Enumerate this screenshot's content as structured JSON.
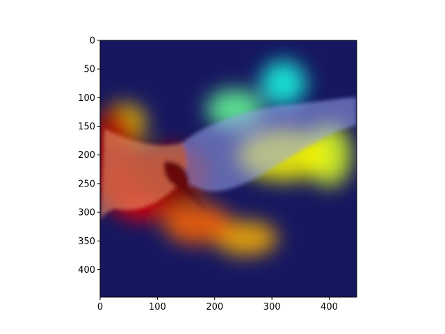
{
  "chart_data": {
    "type": "heatmap",
    "description_of_content": "",
    "title": "",
    "xlabel": "",
    "ylabel": "",
    "xlim": [
      0,
      448
    ],
    "ylim": [
      448,
      0
    ],
    "x_ticks": [
      0,
      100,
      200,
      300,
      400
    ],
    "y_ticks": [
      0,
      50,
      100,
      150,
      200,
      250,
      300,
      350,
      400
    ],
    "grid": false,
    "legend": "none",
    "colormap": "jet",
    "heat_regions": [
      {
        "x": 120,
        "y": 235,
        "rx": 70,
        "ry": 55,
        "level": 1.0
      },
      {
        "x": 25,
        "y": 205,
        "rx": 45,
        "ry": 90,
        "level": 0.95
      },
      {
        "x": 75,
        "y": 260,
        "rx": 65,
        "ry": 55,
        "level": 0.85
      },
      {
        "x": 170,
        "y": 320,
        "rx": 60,
        "ry": 35,
        "level": 0.7
      },
      {
        "x": 255,
        "y": 345,
        "rx": 55,
        "ry": 30,
        "level": 0.6
      },
      {
        "x": 40,
        "y": 145,
        "rx": 40,
        "ry": 35,
        "level": 0.55
      },
      {
        "x": 320,
        "y": 200,
        "rx": 80,
        "ry": 45,
        "level": 0.5
      },
      {
        "x": 400,
        "y": 200,
        "rx": 40,
        "ry": 55,
        "level": 0.45
      },
      {
        "x": 235,
        "y": 120,
        "rx": 50,
        "ry": 35,
        "level": 0.3
      },
      {
        "x": 320,
        "y": 75,
        "rx": 40,
        "ry": 40,
        "level": 0.2
      }
    ],
    "colors": {
      "background": "#16175f",
      "axis": "#000000"
    }
  }
}
